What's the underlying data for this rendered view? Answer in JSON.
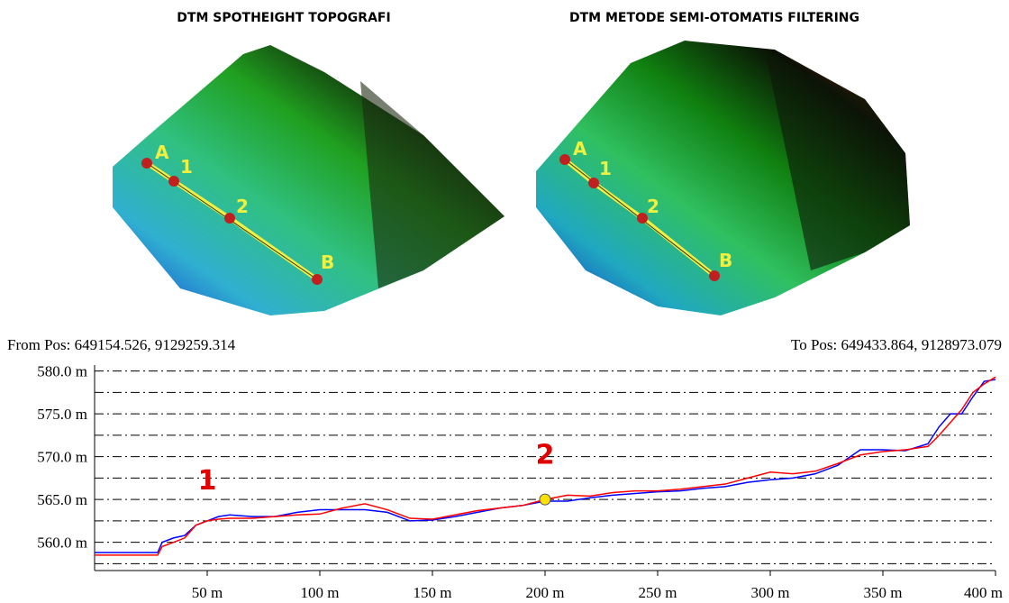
{
  "panels": [
    {
      "title": "DTM SPOTHEIGHT TOPOGRAFI",
      "points": [
        "A",
        "1",
        "2",
        "B"
      ]
    },
    {
      "title": "DTM METODE SEMI-OTOMATIS FILTERING",
      "points": [
        "A",
        "1",
        "2",
        "B"
      ]
    }
  ],
  "chart_data": {
    "type": "line",
    "from_label": "From Pos: 649154.526, 9129259.314",
    "to_label": "To Pos: 649433.864, 9128973.079",
    "x": [
      0,
      28,
      30,
      35,
      40,
      45,
      50,
      55,
      60,
      70,
      80,
      90,
      100,
      110,
      120,
      130,
      140,
      150,
      160,
      170,
      180,
      190,
      200,
      210,
      220,
      230,
      240,
      250,
      260,
      270,
      280,
      290,
      300,
      310,
      320,
      330,
      340,
      350,
      360,
      370,
      375,
      380,
      385,
      390,
      395,
      400
    ],
    "series": [
      {
        "color": "#0000ff",
        "values": [
          558.8,
          558.8,
          560,
          560.5,
          560.8,
          562,
          562.5,
          563,
          563.2,
          563,
          563,
          563.5,
          563.8,
          563.8,
          563.8,
          563.5,
          562.5,
          562.6,
          563,
          563.5,
          564,
          564.3,
          564.8,
          564.8,
          565.2,
          565.5,
          565.7,
          565.9,
          566,
          566.3,
          566.5,
          567,
          567.3,
          567.5,
          568,
          569,
          570.8,
          570.8,
          570.7,
          571.5,
          573.5,
          575,
          575,
          577,
          578.8,
          579
        ]
      },
      {
        "color": "#ff0000",
        "values": [
          558.5,
          558.5,
          559.5,
          560,
          560.5,
          562,
          562.5,
          562.7,
          562.8,
          562.8,
          563,
          563.2,
          563.3,
          564,
          564.5,
          563.8,
          562.8,
          562.7,
          563.2,
          563.7,
          564,
          564.3,
          565,
          565.5,
          565.4,
          565.8,
          566,
          566,
          566.2,
          566.5,
          566.8,
          567.5,
          568.2,
          568,
          568.3,
          569.2,
          570.2,
          570.6,
          570.8,
          571.2,
          572.5,
          574,
          575.5,
          577.5,
          578.5,
          579.3
        ]
      }
    ],
    "xlim": [
      0,
      400
    ],
    "xticks": [
      {
        "value": 50,
        "label": "50 m"
      },
      {
        "value": 100,
        "label": "100 m"
      },
      {
        "value": 150,
        "label": "150 m"
      },
      {
        "value": 200,
        "label": "200 m"
      },
      {
        "value": 250,
        "label": "250 m"
      },
      {
        "value": 300,
        "label": "300 m"
      },
      {
        "value": 350,
        "label": "350 m"
      },
      {
        "value": 400,
        "label": "400 m"
      }
    ],
    "ylim": [
      556.7,
      580.7
    ],
    "yticks": [
      {
        "value": 560,
        "label": "560.0 m"
      },
      {
        "value": 565,
        "label": "565.0 m"
      },
      {
        "value": 570,
        "label": "570.0 m"
      },
      {
        "value": 575,
        "label": "575.0 m"
      },
      {
        "value": 580,
        "label": "580.0 m"
      }
    ],
    "minor_yticks": [
      557.5,
      562.5,
      567.5,
      572.5,
      577.5
    ],
    "grid": true,
    "marker": {
      "x": 200,
      "y": 565,
      "color": "#ffe000"
    },
    "annotations": [
      {
        "text": "1",
        "x": 50,
        "y": 566.2
      },
      {
        "text": "2",
        "x": 200,
        "y": 569.2
      }
    ]
  }
}
